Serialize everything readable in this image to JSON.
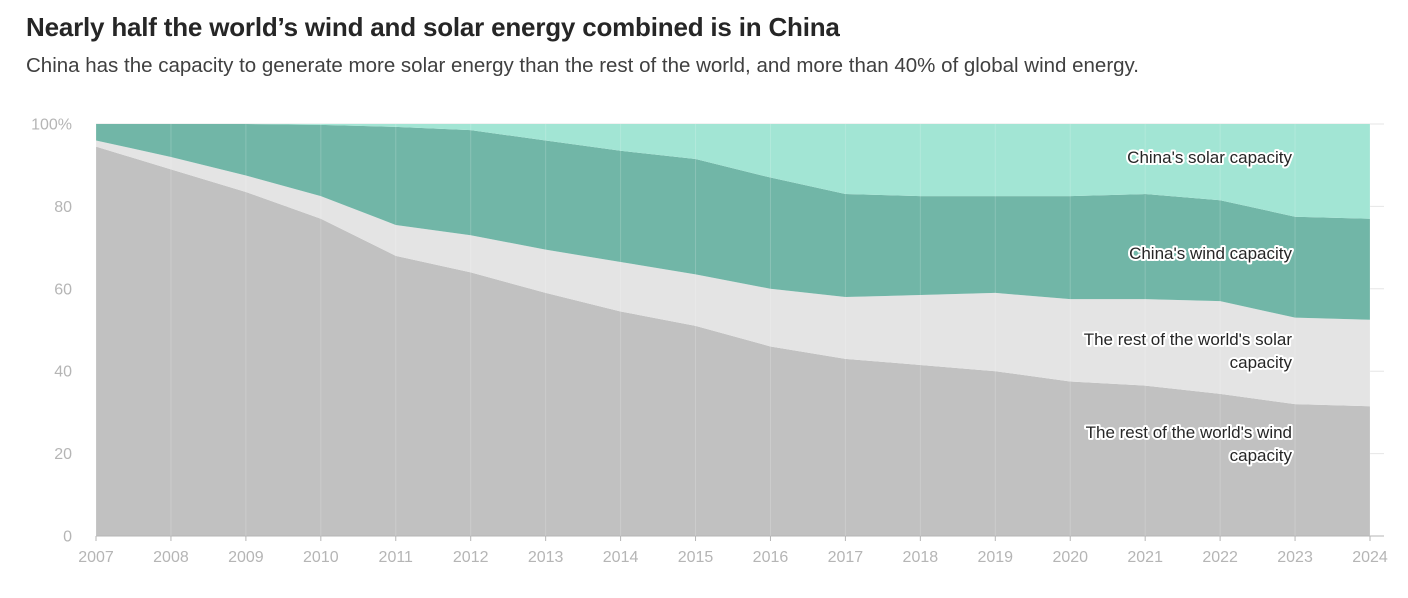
{
  "header": {
    "title": "Nearly half the world’s wind and solar energy combined is in China",
    "subtitle": "China has the capacity to generate more solar energy than the rest of the world, and more than 40% of global wind energy."
  },
  "chart_data": {
    "type": "area",
    "stacked": true,
    "x": [
      2007,
      2008,
      2009,
      2010,
      2011,
      2012,
      2013,
      2014,
      2015,
      2016,
      2017,
      2018,
      2019,
      2020,
      2021,
      2022,
      2023,
      2024
    ],
    "ylim": [
      0,
      100
    ],
    "yticks": [
      0,
      20,
      40,
      60,
      80,
      100
    ],
    "ytick_labels": [
      "0",
      "20",
      "40",
      "60",
      "80",
      "100%"
    ],
    "grid": true,
    "series": [
      {
        "name": "The rest of the world's wind capacity",
        "label_lines": [
          "The rest of the world's wind",
          "capacity"
        ],
        "color": "#c1c1c1",
        "values": [
          94.5,
          89,
          83.5,
          77,
          68,
          64,
          59,
          54.5,
          51,
          46,
          43,
          41.5,
          40,
          37.5,
          36.5,
          34.5,
          32,
          31.5
        ]
      },
      {
        "name": "The rest of the world's solar capacity",
        "label_lines": [
          "The rest of the world's solar",
          "capacity"
        ],
        "color": "#e4e4e4",
        "values": [
          1.5,
          3,
          4,
          5.5,
          7.5,
          9,
          10.5,
          12,
          12.5,
          14,
          15,
          17,
          19,
          20,
          21,
          22.5,
          21,
          21
        ]
      },
      {
        "name": "China's wind capacity",
        "label_lines": [
          "China's wind capacity"
        ],
        "color": "#71b6a7",
        "values": [
          4,
          8,
          12.5,
          17.3,
          23.8,
          25.5,
          26.5,
          27,
          28,
          27,
          25,
          24,
          23.5,
          25,
          25.5,
          24.5,
          24.5,
          24.5
        ]
      },
      {
        "name": "China's solar capacity",
        "label_lines": [
          "China's solar capacity"
        ],
        "color": "#a2e5d4",
        "values": [
          0,
          0,
          0,
          0.2,
          0.7,
          1.5,
          4,
          6.5,
          8.5,
          13,
          17,
          17.5,
          17.5,
          17.5,
          17,
          18.5,
          22.5,
          23
        ]
      }
    ]
  }
}
